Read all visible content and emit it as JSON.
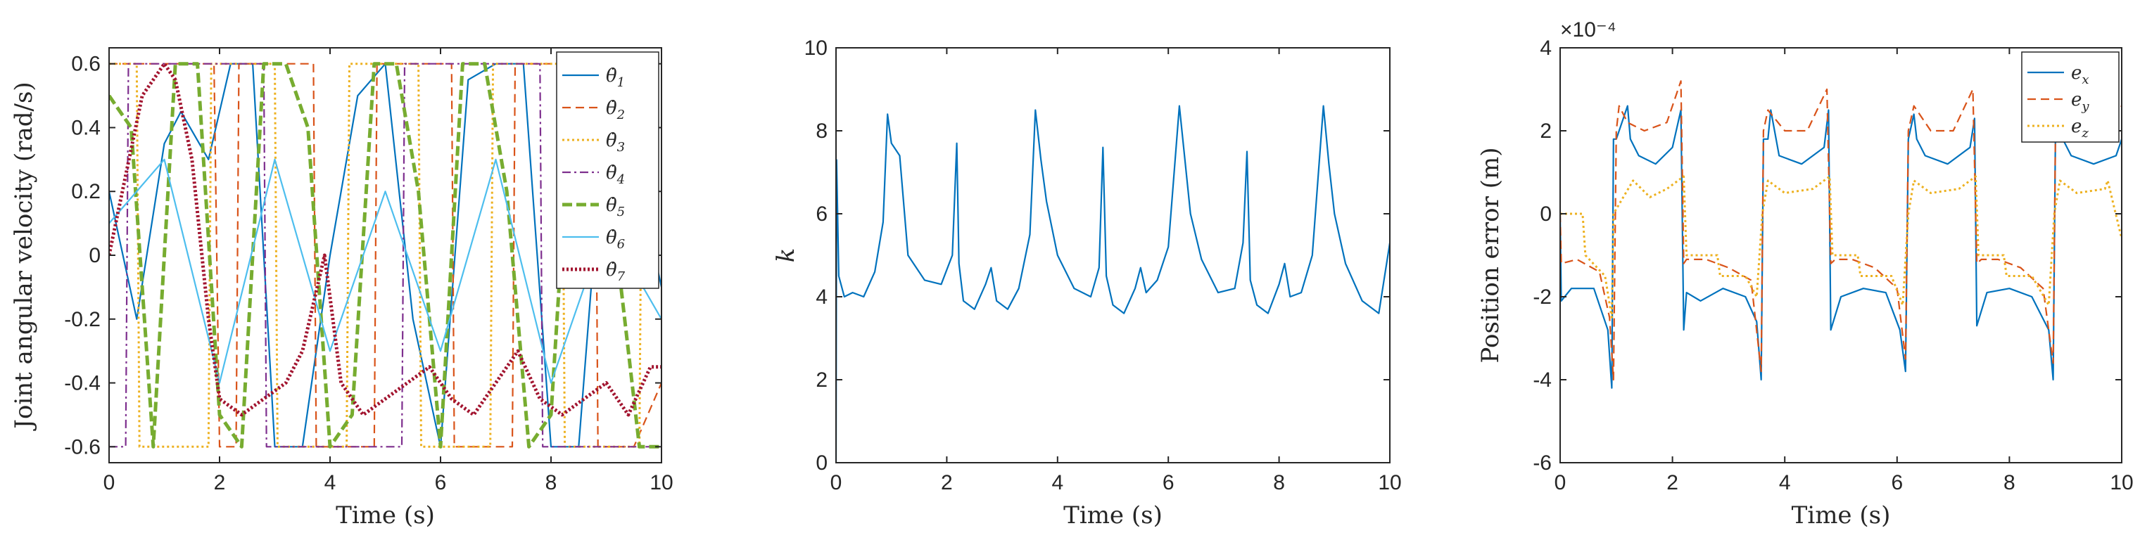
{
  "chart_data": [
    {
      "type": "line",
      "xlabel": "Time (s)",
      "ylabel": "Joint angular velocity (rad/s)",
      "xlim": [
        0,
        10
      ],
      "ylim": [
        -0.65,
        0.65
      ],
      "x_ticks": [
        "0",
        "2",
        "4",
        "6",
        "8",
        "10"
      ],
      "y_ticks": [
        "-0.6",
        "-0.4",
        "-0.2",
        "0",
        "0.2",
        "0.4",
        "0.6"
      ],
      "legend": "top-right",
      "grid": false,
      "series": [
        {
          "name": "θ̇1",
          "color": "#0072BD",
          "dash": "solid",
          "x": [
            0,
            0.5,
            1.0,
            1.3,
            1.8,
            2.2,
            2.6,
            3.0,
            3.5,
            4.0,
            4.5,
            5.0,
            5.5,
            6.0,
            6.5,
            7.0,
            7.5,
            8.0,
            8.5,
            9.0,
            9.5,
            10
          ],
          "values": [
            0.2,
            -0.2,
            0.35,
            0.45,
            0.3,
            0.6,
            0.6,
            -0.6,
            -0.6,
            0.0,
            0.5,
            0.6,
            -0.2,
            -0.6,
            0.55,
            0.6,
            0.6,
            -0.6,
            -0.6,
            0.5,
            0.3,
            -0.1
          ]
        },
        {
          "name": "θ̇2",
          "color": "#D95319",
          "dash": "dash",
          "x": [
            0,
            1.0,
            1.9,
            2.0,
            2.3,
            2.35,
            3.0,
            3.7,
            3.75,
            4.5,
            4.8,
            4.85,
            5.5,
            6.2,
            6.25,
            7.0,
            7.3,
            7.35,
            8.0,
            8.8,
            8.85,
            9.5,
            10
          ],
          "values": [
            0.6,
            0.6,
            0.6,
            -0.6,
            -0.6,
            0.6,
            0.6,
            0.6,
            -0.6,
            -0.6,
            -0.6,
            0.6,
            0.6,
            0.6,
            -0.6,
            -0.6,
            -0.6,
            0.6,
            0.6,
            0.6,
            -0.6,
            -0.6,
            -0.4
          ]
        },
        {
          "name": "θ̇3",
          "color": "#EDB120",
          "dash": "dot",
          "x": [
            0,
            0.5,
            0.55,
            1.8,
            1.85,
            3.0,
            3.05,
            4.3,
            4.35,
            5.6,
            5.65,
            6.9,
            6.95,
            8.2,
            8.25,
            9.6,
            9.65,
            10
          ],
          "values": [
            0.6,
            0.6,
            -0.6,
            -0.6,
            0.6,
            0.6,
            -0.6,
            -0.6,
            0.6,
            0.6,
            -0.6,
            -0.6,
            0.6,
            0.6,
            -0.6,
            -0.6,
            0.6,
            0.6
          ]
        },
        {
          "name": "θ̇4",
          "color": "#7E2F8E",
          "dash": "dashdot",
          "x": [
            0,
            0.3,
            0.35,
            2.8,
            2.85,
            5.3,
            5.35,
            7.8,
            7.85,
            10
          ],
          "values": [
            -0.6,
            -0.6,
            0.6,
            0.6,
            -0.6,
            -0.6,
            0.6,
            0.6,
            -0.6,
            -0.6
          ]
        },
        {
          "name": "θ̇5",
          "color": "#77AC30",
          "dash": "dashthick",
          "x": [
            0,
            0.4,
            0.8,
            1.2,
            1.6,
            2.0,
            2.4,
            2.8,
            3.2,
            3.6,
            4.0,
            4.4,
            4.8,
            5.2,
            5.6,
            6.0,
            6.4,
            6.8,
            7.2,
            7.6,
            8.0,
            8.4,
            8.8,
            9.2,
            9.6,
            10
          ],
          "values": [
            0.5,
            0.4,
            -0.6,
            0.6,
            0.6,
            -0.5,
            -0.6,
            0.6,
            0.6,
            0.4,
            -0.6,
            -0.5,
            0.6,
            0.6,
            0.2,
            -0.6,
            0.6,
            0.6,
            0.2,
            -0.6,
            -0.5,
            0.6,
            0.6,
            0.0,
            -0.6,
            -0.6
          ]
        },
        {
          "name": "θ̇6",
          "color": "#4DBEEE",
          "dash": "solid",
          "x": [
            0,
            1.0,
            2.0,
            3.0,
            4.0,
            5.0,
            6.0,
            7.0,
            8.0,
            9.0,
            10
          ],
          "values": [
            0.1,
            0.3,
            -0.4,
            0.3,
            -0.3,
            0.2,
            -0.3,
            0.3,
            -0.4,
            0.1,
            -0.2
          ]
        },
        {
          "name": "θ̇7",
          "color": "#A2142F",
          "dash": "dotthick",
          "x": [
            0,
            0.3,
            0.6,
            1.0,
            1.2,
            1.5,
            1.8,
            2.0,
            2.4,
            2.8,
            3.2,
            3.5,
            3.9,
            4.2,
            4.6,
            5.0,
            5.4,
            5.8,
            6.2,
            6.6,
            7.0,
            7.4,
            7.8,
            8.2,
            8.6,
            9.0,
            9.4,
            9.8,
            10
          ],
          "values": [
            0.0,
            0.25,
            0.5,
            0.6,
            0.55,
            0.3,
            -0.2,
            -0.45,
            -0.5,
            -0.45,
            -0.4,
            -0.3,
            0.0,
            -0.4,
            -0.5,
            -0.45,
            -0.4,
            -0.35,
            -0.45,
            -0.5,
            -0.4,
            -0.3,
            -0.45,
            -0.5,
            -0.45,
            -0.4,
            -0.5,
            -0.35,
            -0.35
          ]
        }
      ]
    },
    {
      "type": "line",
      "xlabel": "Time (s)",
      "ylabel": "k",
      "xlim": [
        0,
        10
      ],
      "ylim": [
        0,
        10
      ],
      "x_ticks": [
        "0",
        "2",
        "4",
        "6",
        "8",
        "10"
      ],
      "y_ticks": [
        "0",
        "2",
        "4",
        "6",
        "8",
        "10"
      ],
      "grid": false,
      "series": [
        {
          "color": "#0072BD",
          "x": [
            0,
            0.01,
            0.05,
            0.15,
            0.3,
            0.5,
            0.7,
            0.85,
            0.93,
            1.0,
            1.1,
            1.15,
            1.3,
            1.6,
            1.9,
            2.1,
            2.18,
            2.22,
            2.3,
            2.5,
            2.7,
            2.8,
            2.9,
            3.1,
            3.3,
            3.5,
            3.6,
            3.7,
            3.8,
            4.0,
            4.3,
            4.6,
            4.75,
            4.82,
            4.88,
            5.0,
            5.2,
            5.4,
            5.5,
            5.6,
            5.8,
            6.0,
            6.2,
            6.3,
            6.4,
            6.6,
            6.9,
            7.2,
            7.35,
            7.42,
            7.48,
            7.6,
            7.8,
            8.0,
            8.1,
            8.2,
            8.4,
            8.6,
            8.8,
            8.9,
            9.0,
            9.2,
            9.5,
            9.8,
            10
          ],
          "values": [
            0,
            7.3,
            4.5,
            4.0,
            4.1,
            4.0,
            4.6,
            5.8,
            8.4,
            7.7,
            7.5,
            7.4,
            5.0,
            4.4,
            4.3,
            5.0,
            7.7,
            4.8,
            3.9,
            3.7,
            4.3,
            4.7,
            3.9,
            3.7,
            4.2,
            5.5,
            8.5,
            7.3,
            6.3,
            5.0,
            4.2,
            4.0,
            4.7,
            7.6,
            4.5,
            3.8,
            3.6,
            4.2,
            4.7,
            4.1,
            4.4,
            5.2,
            8.6,
            7.3,
            6.0,
            4.9,
            4.1,
            4.2,
            5.3,
            7.5,
            4.4,
            3.8,
            3.6,
            4.3,
            4.8,
            4.0,
            4.1,
            5.0,
            8.6,
            7.2,
            6.0,
            4.8,
            3.9,
            3.6,
            5.3
          ]
        }
      ]
    },
    {
      "type": "line",
      "xlabel": "Time (s)",
      "ylabel": "Position error (m)",
      "multiplier": "×10⁻⁴",
      "xlim": [
        0,
        10
      ],
      "ylim": [
        -6,
        4
      ],
      "x_ticks": [
        "0",
        "2",
        "4",
        "6",
        "8",
        "10"
      ],
      "y_ticks": [
        "-6",
        "-4",
        "-2",
        "0",
        "2",
        "4"
      ],
      "legend": "top-right",
      "grid": false,
      "series": [
        {
          "name": "e_x",
          "color": "#0072BD",
          "dash": "solid",
          "x": [
            0,
            0.02,
            0.2,
            0.6,
            0.85,
            0.92,
            0.95,
            1.0,
            1.2,
            1.25,
            1.4,
            1.7,
            2.0,
            2.15,
            2.2,
            2.25,
            2.5,
            2.9,
            3.3,
            3.5,
            3.58,
            3.62,
            3.7,
            3.75,
            3.9,
            4.3,
            4.7,
            4.78,
            4.82,
            5.0,
            5.4,
            5.8,
            6.05,
            6.15,
            6.2,
            6.3,
            6.35,
            6.5,
            6.9,
            7.3,
            7.38,
            7.42,
            7.6,
            8.0,
            8.4,
            8.7,
            8.78,
            8.82,
            8.9,
            8.95,
            9.1,
            9.5,
            9.9,
            10
          ],
          "values": [
            0,
            -2.1,
            -1.8,
            -1.8,
            -2.8,
            -4.2,
            1.8,
            1.8,
            2.6,
            1.8,
            1.4,
            1.2,
            1.6,
            2.5,
            -2.8,
            -1.9,
            -2.1,
            -1.8,
            -2.0,
            -2.6,
            -4.0,
            1.8,
            1.8,
            2.5,
            1.4,
            1.2,
            1.6,
            2.5,
            -2.8,
            -2.0,
            -1.8,
            -1.9,
            -2.8,
            -3.8,
            1.8,
            2.4,
            1.8,
            1.4,
            1.2,
            1.6,
            2.3,
            -2.7,
            -1.9,
            -1.8,
            -2.0,
            -2.8,
            -4.0,
            1.8,
            2.2,
            1.8,
            1.4,
            1.2,
            1.4,
            1.8
          ]
        },
        {
          "name": "e_y",
          "color": "#D95319",
          "dash": "dash",
          "x": [
            0,
            0.02,
            0.3,
            0.7,
            0.88,
            0.95,
            1.0,
            1.05,
            1.2,
            1.5,
            1.9,
            2.15,
            2.2,
            2.25,
            2.6,
            3.0,
            3.4,
            3.58,
            3.62,
            3.7,
            4.0,
            4.4,
            4.75,
            4.82,
            4.9,
            5.2,
            5.6,
            6.0,
            6.15,
            6.2,
            6.3,
            6.6,
            7.0,
            7.35,
            7.42,
            7.5,
            7.8,
            8.2,
            8.6,
            8.78,
            8.82,
            8.9,
            9.2,
            9.6,
            10
          ],
          "values": [
            0,
            -1.2,
            -1.1,
            -1.4,
            -2.5,
            -4.0,
            2.0,
            2.6,
            2.2,
            2.0,
            2.2,
            3.2,
            -1.2,
            -1.1,
            -1.1,
            -1.3,
            -1.6,
            -3.8,
            2.0,
            2.5,
            2.0,
            2.0,
            3.0,
            -1.2,
            -1.1,
            -1.1,
            -1.3,
            -1.8,
            -3.5,
            2.0,
            2.6,
            2.0,
            2.0,
            3.0,
            -1.2,
            -1.1,
            -1.1,
            -1.3,
            -1.8,
            -3.6,
            1.8,
            2.4,
            1.9,
            2.0,
            2.6
          ]
        },
        {
          "name": "e_z",
          "color": "#EDB120",
          "dash": "dot",
          "x": [
            0,
            0.02,
            0.4,
            0.45,
            0.8,
            0.92,
            0.95,
            1.3,
            1.6,
            1.9,
            2.2,
            2.25,
            2.8,
            2.85,
            3.3,
            3.5,
            3.6,
            3.7,
            4.0,
            4.5,
            4.8,
            4.85,
            5.3,
            5.35,
            5.9,
            6.1,
            6.2,
            6.3,
            6.6,
            7.1,
            7.4,
            7.45,
            7.9,
            7.95,
            8.4,
            8.7,
            8.8,
            8.9,
            9.2,
            9.7,
            9.75,
            10
          ],
          "values": [
            0,
            0,
            0,
            -1.0,
            -1.5,
            -2.5,
            0,
            0.8,
            0.4,
            0.6,
            0.9,
            -1.0,
            -1.0,
            -1.5,
            -1.5,
            -2.0,
            0,
            0.8,
            0.5,
            0.6,
            0.9,
            -1.0,
            -1.0,
            -1.5,
            -1.5,
            -2.2,
            0,
            0.8,
            0.5,
            0.6,
            0.9,
            -1.0,
            -1.0,
            -1.5,
            -1.5,
            -2.2,
            0,
            0.8,
            0.5,
            0.6,
            0.8,
            -0.6
          ]
        }
      ]
    }
  ]
}
